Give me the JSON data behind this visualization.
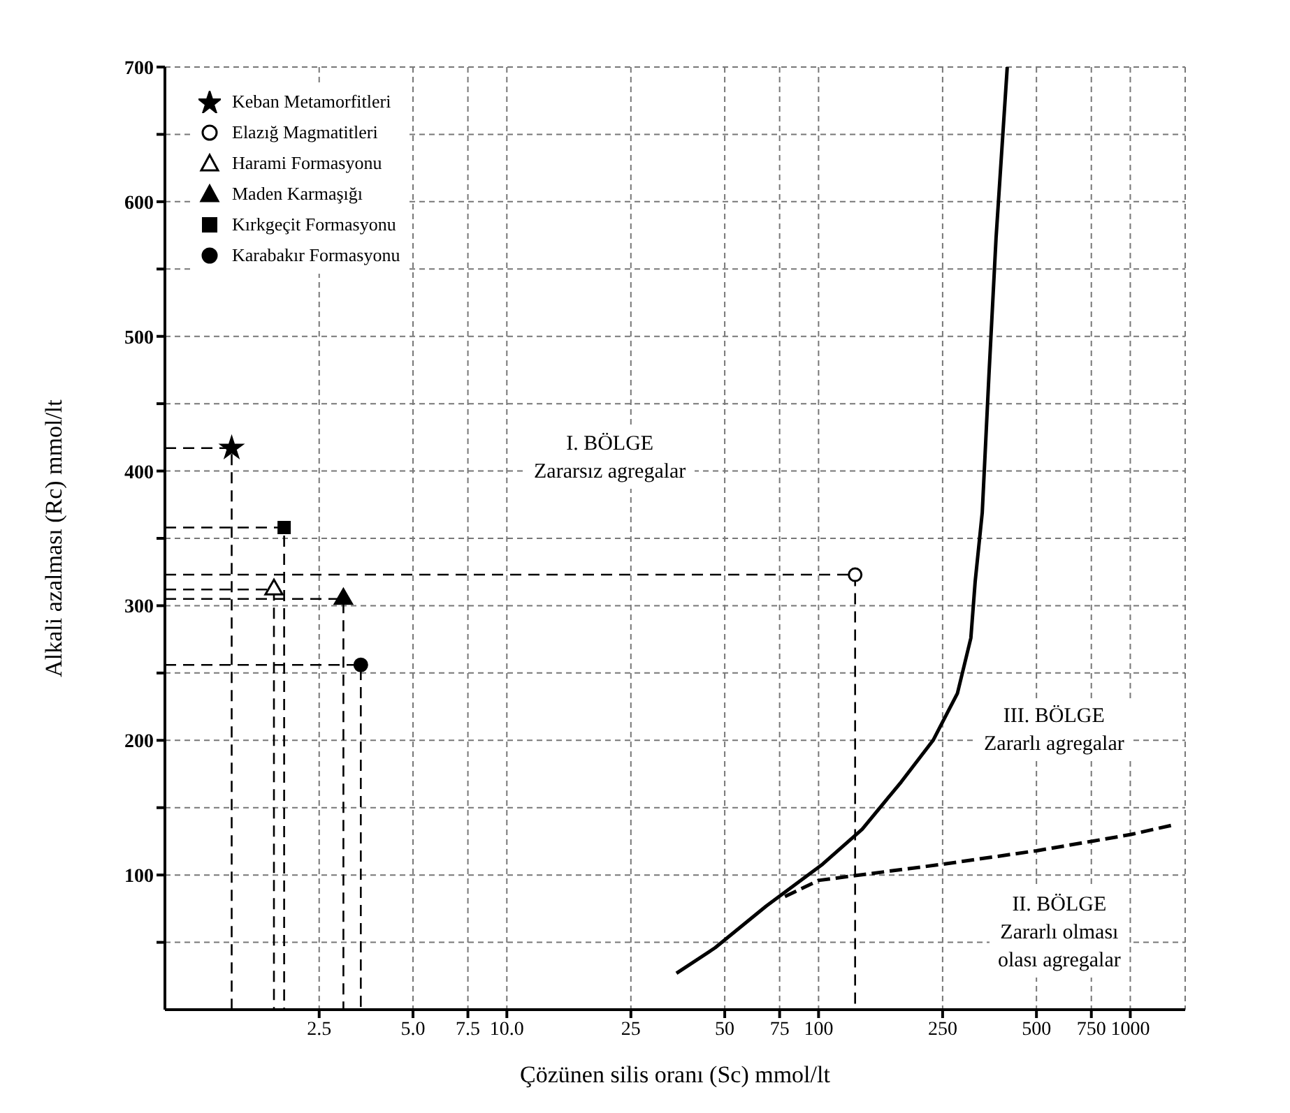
{
  "chart_data": {
    "type": "scatter",
    "xlabel": "Çözünen silis oranı (Sc) mmol/lt",
    "ylabel": "Alkali azalması (Rc) mmol/lt",
    "log": "x",
    "xlim": [
      0.8,
      1500
    ],
    "xticks": [
      2.5,
      {
        "value": 5,
        "label": "5.0"
      },
      7.5,
      {
        "value": 10,
        "label": "10.0"
      },
      25,
      50,
      75,
      100,
      250,
      500,
      750,
      1000
    ],
    "ylim": [
      0,
      700
    ],
    "yticks": [
      {
        "value": 50,
        "label": null
      },
      100,
      {
        "value": 150,
        "label": null
      },
      200,
      {
        "value": 250,
        "label": null
      },
      300,
      {
        "value": 350,
        "label": null
      },
      400,
      {
        "value": 450,
        "label": null
      },
      500,
      {
        "value": 550,
        "label": null
      },
      600,
      {
        "value": 650,
        "label": null
      },
      700
    ],
    "grid": true,
    "legend": "top left",
    "series": [
      {
        "name": "Keban Metamorfitleri",
        "color": "#000000",
        "marker": "star",
        "x": [
          1.31
        ],
        "values": [
          417
        ]
      },
      {
        "name": "Elazığ Magmatitleri",
        "color": "#ffffff",
        "marker": "circle",
        "x": [
          131
        ],
        "values": [
          323
        ]
      },
      {
        "name": "Harami Formasyonu",
        "color": "#ffffff",
        "marker": "triangle",
        "x": [
          1.79
        ],
        "values": [
          312
        ]
      },
      {
        "name": "Maden Karmaşığı",
        "color": "#000000",
        "marker": "triangle",
        "x": [
          2.99
        ],
        "values": [
          305
        ]
      },
      {
        "name": "Kırkgeçit Formasyonu",
        "color": "#000000",
        "marker": "square",
        "x": [
          1.93
        ],
        "values": [
          358
        ]
      },
      {
        "name": "Karabakır Formasyonu",
        "color": "#000000",
        "marker": "circle",
        "x": [
          3.4
        ],
        "values": [
          256
        ]
      },
      {
        "type": "line",
        "color": "#000000",
        "marker": "none",
        "line_style": "solid",
        "x": [
          35,
          46.6,
          68,
          103,
          138,
          184,
          233,
          279,
          308,
          318,
          335,
          352,
          371,
          403
        ],
        "values": [
          27,
          46,
          77,
          108,
          134,
          169,
          200,
          235,
          276,
          318,
          369,
          471,
          573,
          700
        ]
      },
      {
        "type": "line",
        "color": "#000000",
        "marker": "none",
        "line_style": "dashed",
        "x": [
          78,
          100,
          250,
          500,
          750,
          1000,
          1365
        ],
        "values": [
          84,
          96,
          108,
          118,
          125,
          130,
          137
        ]
      },
      {
        "type": "line",
        "color": "#000000",
        "marker": "none",
        "line_style": "dashed",
        "x": [
          0.8,
          1.31,
          1.31
        ],
        "values": [
          417,
          417,
          0
        ]
      },
      {
        "type": "line",
        "color": "#000000",
        "marker": "none",
        "line_style": "dashed",
        "x": [
          0.8,
          131,
          131
        ],
        "values": [
          323,
          323,
          0
        ]
      },
      {
        "type": "line",
        "color": "#000000",
        "marker": "none",
        "line_style": "dashed",
        "x": [
          0.8,
          1.79,
          1.79
        ],
        "values": [
          312,
          312,
          0
        ]
      },
      {
        "type": "line",
        "color": "#000000",
        "marker": "none",
        "line_style": "dashed",
        "x": [
          0.8,
          2.99,
          2.99
        ],
        "values": [
          305,
          305,
          0
        ]
      },
      {
        "type": "line",
        "color": "#000000",
        "marker": "none",
        "line_style": "dashed",
        "x": [
          0.8,
          1.93,
          1.93
        ],
        "values": [
          358,
          358,
          0
        ]
      },
      {
        "type": "line",
        "color": "#000000",
        "marker": "none",
        "line_style": "dashed",
        "x": [
          0.8,
          3.4,
          3.4
        ],
        "values": [
          256,
          256,
          0
        ]
      }
    ],
    "annotations": [
      "I. BÖLGE\nZararsız agregalar",
      "III. BÖLGE\nZararlı agregalar",
      "II. BÖLGE\nZararlı olması\nolası agregalar"
    ]
  }
}
